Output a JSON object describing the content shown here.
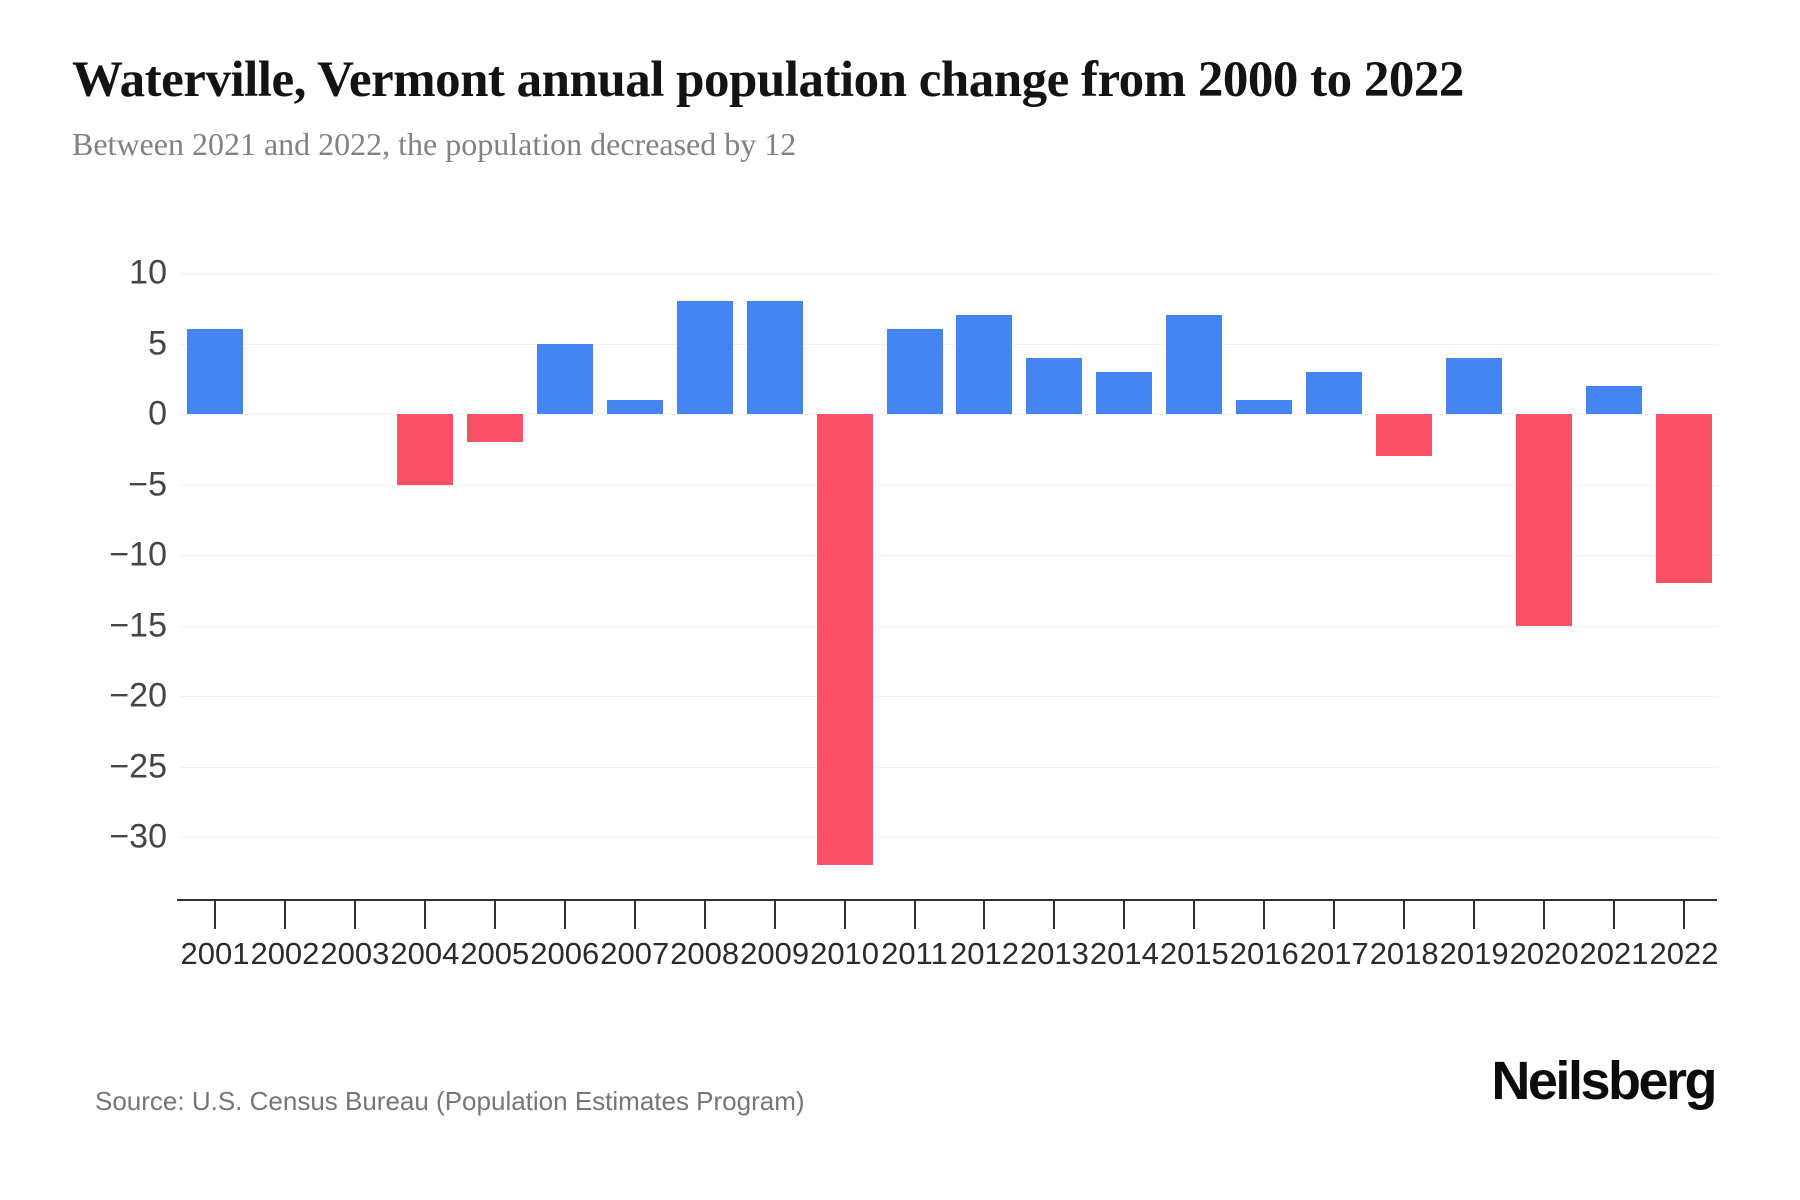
{
  "footer": {
    "source": "Source: U.S. Census Bureau (Population Estimates Program)",
    "brand": "Neilsberg"
  },
  "chart_data": {
    "type": "bar",
    "title": "Waterville, Vermont annual population change from 2000 to 2022",
    "subtitle": "Between 2021 and 2022, the population decreased by 12",
    "categories": [
      "2001",
      "2002",
      "2003",
      "2004",
      "2005",
      "2006",
      "2007",
      "2008",
      "2009",
      "2010",
      "2011",
      "2012",
      "2013",
      "2014",
      "2015",
      "2016",
      "2017",
      "2018",
      "2019",
      "2020",
      "2021",
      "2022"
    ],
    "values": [
      6,
      0,
      0,
      -5,
      -2,
      5,
      1,
      8,
      8,
      -32,
      6,
      7,
      4,
      3,
      7,
      1,
      3,
      -3,
      4,
      -15,
      2,
      -12
    ],
    "y_ticks": [
      10,
      5,
      0,
      -5,
      -10,
      -15,
      -20,
      -25,
      -30
    ],
    "ylim": [
      -34.7,
      12.3
    ],
    "xlabel": "",
    "ylabel": "",
    "grid": true,
    "legend": false,
    "colors": {
      "positive_bar": "#4484f3",
      "negative_bar": "#fa5167",
      "gridline": "#f0f0f0",
      "axis": "#2f2f2f"
    }
  }
}
